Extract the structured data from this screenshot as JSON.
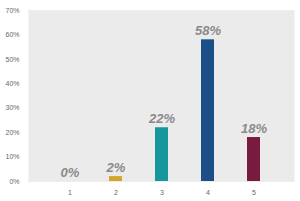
{
  "chart_data": {
    "type": "bar",
    "categories": [
      "1",
      "2",
      "3",
      "4",
      "5"
    ],
    "values": [
      0,
      2,
      22,
      58,
      18
    ],
    "value_labels": [
      "0%",
      "2%",
      "22%",
      "58%",
      "18%"
    ],
    "colors": [
      "#8c8c8c",
      "#d4a52a",
      "#16979c",
      "#1b4f86",
      "#781b3e"
    ],
    "ylim": [
      0,
      70
    ],
    "yticks": [
      {
        "value": 0,
        "label": "0%"
      },
      {
        "value": 10,
        "label": "10%"
      },
      {
        "value": 20,
        "label": "20%"
      },
      {
        "value": 30,
        "label": "30%"
      },
      {
        "value": 40,
        "label": "40%"
      },
      {
        "value": 50,
        "label": "50%"
      },
      {
        "value": 60,
        "label": "60%"
      },
      {
        "value": 70,
        "label": "70%"
      }
    ],
    "grid": true,
    "data_labels": true
  }
}
